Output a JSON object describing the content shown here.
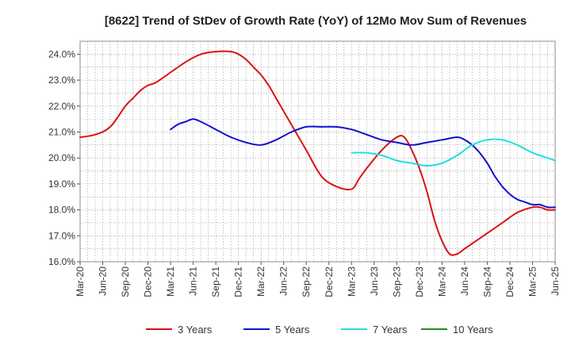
{
  "chart_data": {
    "type": "line",
    "title": "[8622]  Trend of StDev of Growth Rate (YoY) of 12Mo Mov Sum of Revenues",
    "xlabel": "",
    "ylabel": "",
    "ylim": [
      16.0,
      24.5
    ],
    "y_ticks": [
      16.0,
      17.0,
      18.0,
      19.0,
      20.0,
      21.0,
      22.0,
      23.0,
      24.0
    ],
    "y_tick_labels": [
      "16.0%",
      "17.0%",
      "18.0%",
      "19.0%",
      "20.0%",
      "21.0%",
      "22.0%",
      "23.0%",
      "24.0%"
    ],
    "x_tick_labels": [
      "Mar-20",
      "Jun-20",
      "Sep-20",
      "Dec-20",
      "Mar-21",
      "Jun-21",
      "Sep-21",
      "Dec-21",
      "Mar-22",
      "Jun-22",
      "Sep-22",
      "Dec-22",
      "Mar-23",
      "Jun-23",
      "Sep-23",
      "Dec-23",
      "Mar-24",
      "Jun-24",
      "Sep-24",
      "Dec-24",
      "Mar-25",
      "Jun-25"
    ],
    "x_range_months": [
      0,
      63
    ],
    "grid": true,
    "legend_position": "bottom",
    "series": [
      {
        "name": "3 Years",
        "color": "#dd1111",
        "x": [
          0,
          2,
          4,
          6,
          7,
          8,
          9,
          10,
          12,
          14,
          16,
          18,
          20,
          21,
          22,
          23,
          24,
          25,
          26,
          28,
          30,
          32,
          34,
          36,
          37,
          38,
          40,
          42,
          43,
          44,
          45,
          46,
          47,
          48,
          49,
          50,
          51,
          52,
          54,
          56,
          58,
          60,
          61,
          62,
          63
        ],
        "values": [
          20.8,
          20.9,
          21.2,
          22.0,
          22.3,
          22.6,
          22.8,
          22.9,
          23.3,
          23.7,
          24.0,
          24.1,
          24.1,
          24.0,
          23.8,
          23.5,
          23.2,
          22.8,
          22.3,
          21.3,
          20.3,
          19.3,
          18.9,
          18.8,
          19.2,
          19.6,
          20.3,
          20.8,
          20.8,
          20.3,
          19.6,
          18.7,
          17.6,
          16.8,
          16.3,
          16.3,
          16.5,
          16.7,
          17.1,
          17.5,
          17.9,
          18.1,
          18.1,
          18.0,
          18.0
        ],
        "x_offset_months": 0
      },
      {
        "name": "5 Years",
        "color": "#1111cc",
        "x": [
          12,
          13,
          14,
          15,
          16,
          18,
          20,
          22,
          24,
          26,
          28,
          30,
          32,
          34,
          36,
          38,
          40,
          42,
          44,
          46,
          48,
          50,
          51,
          52,
          53,
          54,
          55,
          56,
          57,
          58,
          59,
          60,
          61,
          62,
          63
        ],
        "values": [
          21.1,
          21.3,
          21.4,
          21.5,
          21.4,
          21.1,
          20.8,
          20.6,
          20.5,
          20.7,
          21.0,
          21.2,
          21.2,
          21.2,
          21.1,
          20.9,
          20.7,
          20.6,
          20.5,
          20.6,
          20.7,
          20.8,
          20.7,
          20.5,
          20.2,
          19.8,
          19.3,
          18.9,
          18.6,
          18.4,
          18.3,
          18.2,
          18.2,
          18.1,
          18.1
        ],
        "x_offset_months": 0
      },
      {
        "name": "7 Years",
        "color": "#22dddd",
        "x": [
          36,
          38,
          40,
          42,
          44,
          46,
          48,
          50,
          52,
          54,
          56,
          58,
          60,
          62,
          63
        ],
        "values": [
          20.2,
          20.2,
          20.1,
          19.9,
          19.8,
          19.7,
          19.8,
          20.1,
          20.5,
          20.7,
          20.7,
          20.5,
          20.2,
          20.0,
          19.9
        ],
        "x_offset_months": 0
      },
      {
        "name": "10 Years",
        "color": "#228822",
        "x": [],
        "values": []
      }
    ]
  }
}
